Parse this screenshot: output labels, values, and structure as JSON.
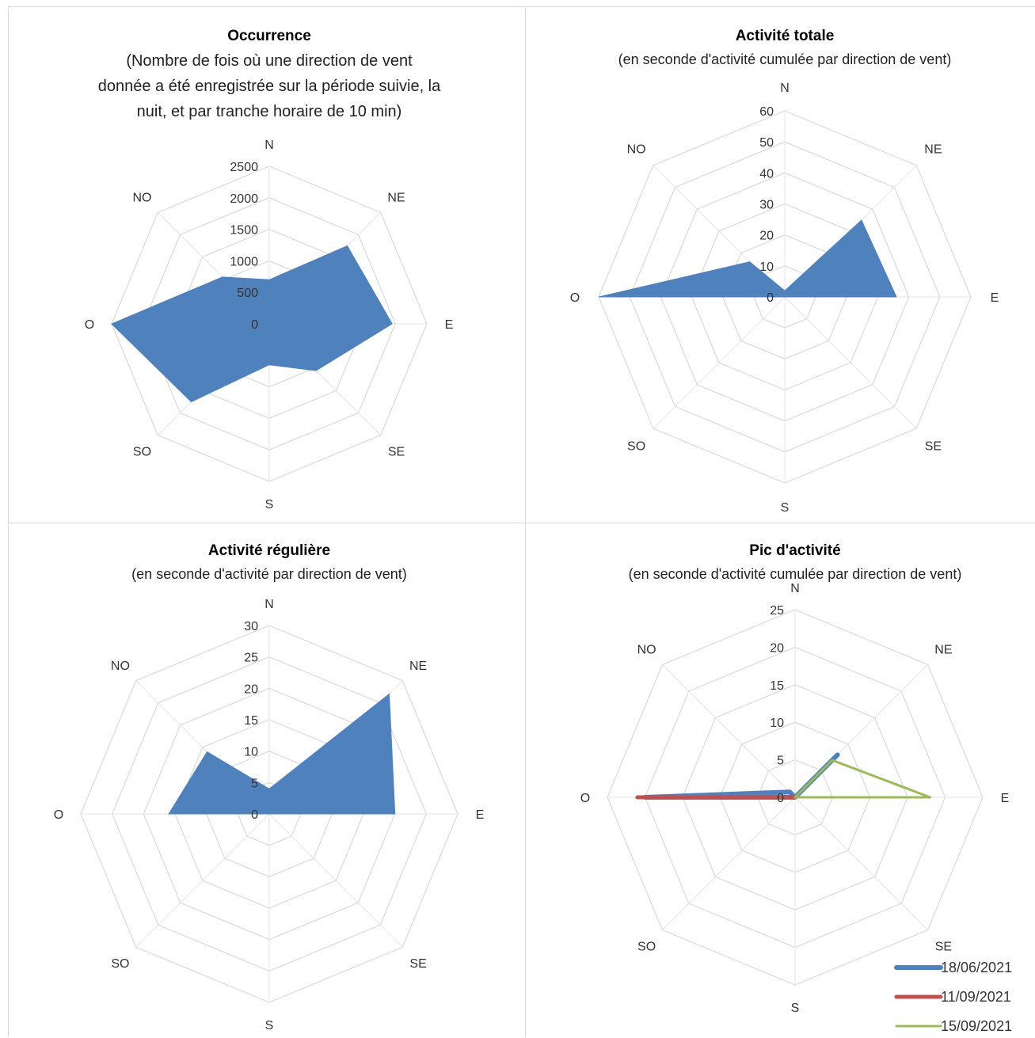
{
  "chart_data": [
    {
      "type": "radar",
      "title": "Occurrence",
      "subtitle_lines": [
        "(Nombre de fois où une direction de vent",
        "donnée a été enregistrée sur la période suivie, la",
        "nuit, et par tranche horaire de 10 min)"
      ],
      "categories": [
        "N",
        "NE",
        "E",
        "SE",
        "S",
        "SO",
        "O",
        "NO"
      ],
      "rmax": 2500,
      "ticks": [
        0,
        500,
        1000,
        1500,
        2000,
        2500
      ],
      "tick_labels": [
        "0",
        "500",
        "1000",
        "1500",
        "2000",
        "2500"
      ],
      "grid": true,
      "series": [
        {
          "color": "#4f81bd",
          "fill": true,
          "values": [
            700,
            1750,
            1950,
            1050,
            650,
            1750,
            2500,
            1050
          ]
        }
      ]
    },
    {
      "type": "radar",
      "title": "Activité totale",
      "subtitle_lines": [
        "(en seconde d'activité cumulée par direction de vent)"
      ],
      "categories": [
        "N",
        "NE",
        "E",
        "SE",
        "S",
        "SO",
        "O",
        "NO"
      ],
      "rmax": 60,
      "ticks": [
        0,
        10,
        20,
        30,
        40,
        50,
        60
      ],
      "tick_labels": [
        "0",
        "10",
        "20",
        "30",
        "40",
        "50",
        "60"
      ],
      "grid": true,
      "series": [
        {
          "color": "#4f81bd",
          "fill": true,
          "values": [
            2,
            35,
            36,
            0,
            0,
            0,
            60,
            16
          ]
        }
      ]
    },
    {
      "type": "radar",
      "title": "Activité régulière",
      "subtitle_lines": [
        "(en seconde d'activité par direction de vent)"
      ],
      "categories": [
        "N",
        "NE",
        "E",
        "SE",
        "S",
        "SO",
        "O",
        "NO"
      ],
      "rmax": 30,
      "ticks": [
        0,
        5,
        10,
        15,
        20,
        25,
        30
      ],
      "tick_labels": [
        "0",
        "5",
        "10",
        "15",
        "20",
        "25",
        "30"
      ],
      "grid": true,
      "series": [
        {
          "color": "#4f81bd",
          "fill": true,
          "values": [
            4,
            27,
            20,
            0,
            0,
            0,
            16,
            14
          ]
        }
      ]
    },
    {
      "type": "radar",
      "title": "Pic d'activité",
      "subtitle_lines": [
        "(en seconde d'activité cumulée par direction de vent)"
      ],
      "categories": [
        "N",
        "NE",
        "E",
        "SE",
        "S",
        "SO",
        "O",
        "NO"
      ],
      "rmax": 25,
      "ticks": [
        0,
        5,
        10,
        15,
        20,
        25
      ],
      "tick_labels": [
        "0",
        "5",
        "10",
        "15",
        "20",
        "25"
      ],
      "grid": true,
      "legend_position": "bottom-right",
      "series": [
        {
          "name": "18/06/2021",
          "color": "#4f81bd",
          "fill": false,
          "width": 6,
          "values": [
            0,
            8,
            0,
            0,
            0,
            0,
            20,
            1
          ]
        },
        {
          "name": "11/09/2021",
          "color": "#c0504d",
          "fill": false,
          "width": 5,
          "values": [
            0,
            0,
            0,
            0,
            0,
            0,
            21,
            0
          ]
        },
        {
          "name": "15/09/2021",
          "color": "#9bbb59",
          "fill": false,
          "width": 3,
          "values": [
            0,
            7,
            18,
            0,
            0,
            0,
            0,
            0
          ]
        }
      ]
    }
  ]
}
